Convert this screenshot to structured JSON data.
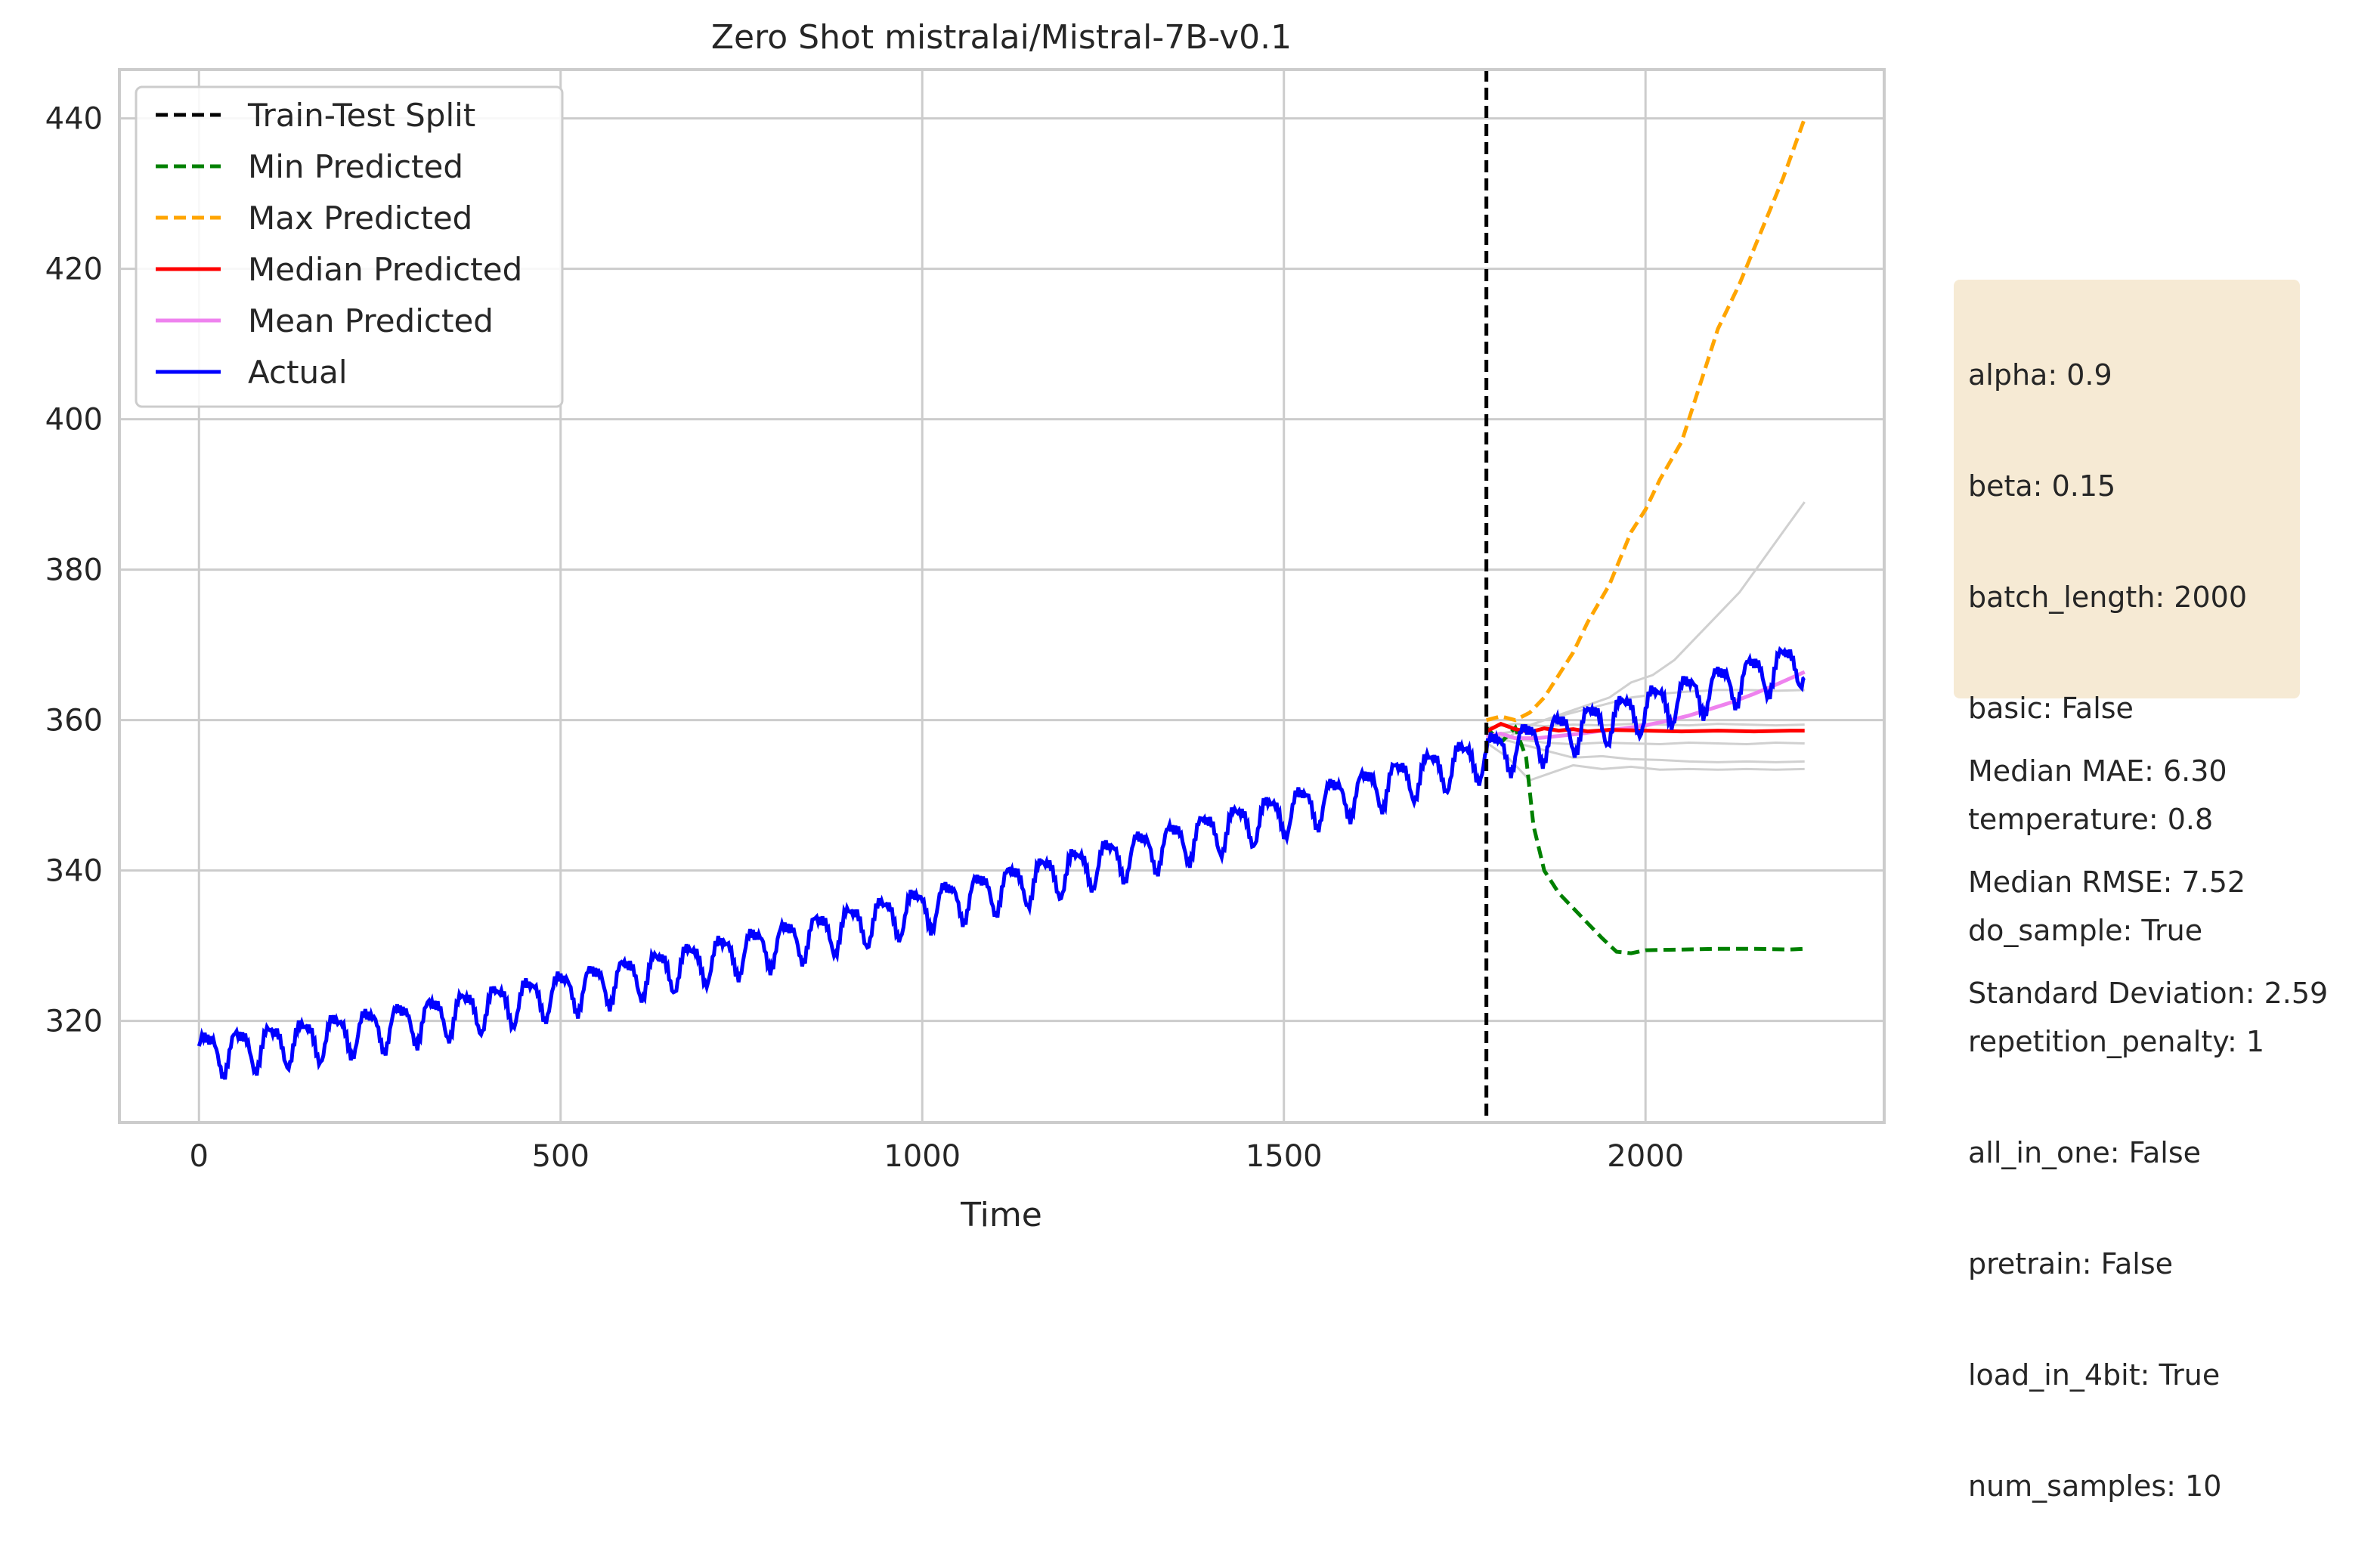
{
  "chart_data": {
    "type": "line",
    "title": "Zero Shot mistralai/Mistral-7B-v0.1",
    "xlabel": "Time",
    "ylabel": "",
    "xlim": [
      -110,
      2330
    ],
    "ylim": [
      306.5,
      446.5
    ],
    "x_ticks": [
      0,
      500,
      1000,
      1500,
      2000
    ],
    "y_ticks": [
      320,
      340,
      360,
      380,
      400,
      420,
      440
    ],
    "grid": true,
    "legend_position": "top-left",
    "train_test_split": 1780,
    "series": [
      {
        "name": "Train-Test Split",
        "color": "#000000",
        "style": "dashed"
      },
      {
        "name": "Min Predicted",
        "color": "#008000",
        "style": "dashed",
        "x": [
          1780,
          1800,
          1820,
          1835,
          1845,
          1860,
          1880,
          1900,
          1920,
          1940,
          1960,
          1980,
          2000,
          2050,
          2100,
          2150,
          2200,
          2220
        ],
        "y": [
          359,
          357,
          359,
          355,
          346,
          340,
          337,
          335,
          333,
          331,
          329.2,
          329,
          329.4,
          329.5,
          329.6,
          329.6,
          329.5,
          329.6
        ]
      },
      {
        "name": "Max Predicted",
        "color": "#ffa500",
        "style": "dashed",
        "x": [
          1780,
          1800,
          1820,
          1840,
          1860,
          1880,
          1900,
          1920,
          1950,
          1980,
          2000,
          2020,
          2050,
          2080,
          2100,
          2130,
          2160,
          2190,
          2220
        ],
        "y": [
          360,
          360.5,
          360,
          361,
          363,
          366,
          369,
          373,
          378,
          385,
          388,
          392,
          397,
          406,
          412,
          418,
          425,
          432,
          440
        ]
      },
      {
        "name": "Median Predicted",
        "color": "#ff0000",
        "style": "solid",
        "x": [
          1780,
          1800,
          1820,
          1840,
          1860,
          1880,
          1900,
          1920,
          1950,
          2000,
          2050,
          2100,
          2150,
          2200,
          2220
        ],
        "y": [
          358.5,
          359.5,
          358.8,
          358.4,
          358.9,
          358.6,
          358.8,
          358.5,
          358.7,
          358.6,
          358.5,
          358.6,
          358.5,
          358.6,
          358.6
        ]
      },
      {
        "name": "Mean Predicted",
        "color": "#ee82ee",
        "style": "solid",
        "x": [
          1780,
          1800,
          1820,
          1850,
          1880,
          1910,
          1940,
          1970,
          2000,
          2030,
          2060,
          2090,
          2120,
          2150,
          2180,
          2220
        ],
        "y": [
          357.8,
          358.2,
          357.6,
          357.6,
          357.9,
          358.2,
          358.6,
          358.9,
          359.3,
          359.9,
          360.6,
          361.5,
          362.4,
          363.5,
          364.7,
          366.4
        ]
      },
      {
        "name": "Actual",
        "color": "#0000ff",
        "style": "solid",
        "start": 0,
        "end": 2220,
        "base_start": 315.8,
        "base_end": 368,
        "amplitude": 2.6,
        "period": 44.5
      }
    ],
    "sample_paths": [
      {
        "color": "#d0d0d0",
        "x": [
          1780,
          1800,
          1830,
          1860,
          1890,
          1920,
          1950,
          1980,
          2010,
          2040,
          2070,
          2100,
          2130,
          2160,
          2190,
          2220
        ],
        "y": [
          358,
          357,
          359,
          360,
          361,
          362,
          363,
          365,
          366,
          368,
          371,
          374,
          377,
          381,
          385,
          389
        ]
      },
      {
        "color": "#d0d0d0",
        "x": [
          1780,
          1820,
          1860,
          1900,
          1940,
          1980,
          2020,
          2060,
          2100,
          2140,
          2180,
          2220
        ],
        "y": [
          358,
          357,
          356,
          355,
          355.2,
          354.8,
          354.7,
          354.5,
          354.4,
          354.5,
          354.4,
          354.5
        ]
      },
      {
        "color": "#d0d0d0",
        "x": [
          1780,
          1810,
          1840,
          1870,
          1900,
          1940,
          1980,
          2020,
          2060,
          2100,
          2140,
          2180,
          2220
        ],
        "y": [
          357,
          355,
          352,
          353,
          354,
          353.5,
          353.8,
          353.4,
          353.5,
          353.4,
          353.5,
          353.4,
          353.5
        ]
      },
      {
        "color": "#d0d0d0",
        "x": [
          1780,
          1820,
          1860,
          1900,
          1940,
          1980,
          2020,
          2060,
          2100,
          2140,
          2180,
          2220
        ],
        "y": [
          358,
          358.5,
          360,
          361,
          362,
          363,
          363.5,
          363.8,
          364,
          364,
          363.9,
          364
        ]
      },
      {
        "color": "#d0d0d0",
        "x": [
          1780,
          1820,
          1860,
          1900,
          1940,
          1980,
          2020,
          2060,
          2100,
          2140,
          2180,
          2220
        ],
        "y": [
          358,
          357.5,
          357,
          356.8,
          357,
          356.9,
          356.8,
          357,
          356.9,
          356.8,
          357,
          356.9
        ]
      },
      {
        "color": "#d0d0d0",
        "x": [
          1780,
          1820,
          1860,
          1900,
          1940,
          1980,
          2020,
          2060,
          2100,
          2140,
          2180,
          2220
        ],
        "y": [
          359,
          359.5,
          359.2,
          359.4,
          359.3,
          359.5,
          359.4,
          359.3,
          359.5,
          359.4,
          359.3,
          359.4
        ]
      }
    ],
    "info_lines": [
      "alpha: 0.9",
      "beta: 0.15",
      "batch_length: 2000",
      "basic: False",
      "temperature: 0.8",
      "do_sample: True",
      "repetition_penalty: 1",
      "all_in_one: False",
      "pretrain: False",
      "load_in_4bit: True",
      "num_samples: 10"
    ],
    "stats_lines": [
      "Median MAE: 6.30",
      "Median RMSE: 7.52",
      "Standard Deviation: 2.59"
    ]
  }
}
